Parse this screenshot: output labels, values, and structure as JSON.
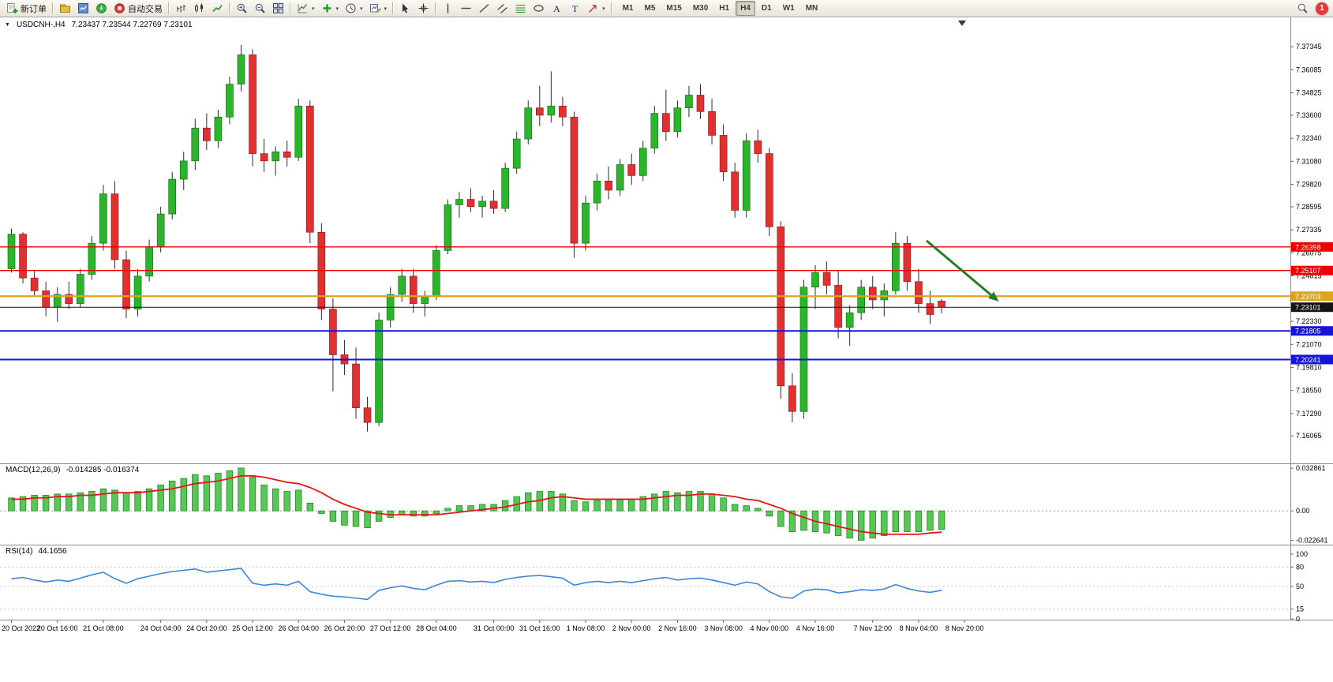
{
  "toolbar": {
    "new_order_label": "新订单",
    "auto_trading_label": "自动交易",
    "timeframes": [
      "M1",
      "M5",
      "M15",
      "M30",
      "H1",
      "H4",
      "D1",
      "W1",
      "MN"
    ],
    "active_timeframe": "H4",
    "notification_count": "1"
  },
  "symbol_row": {
    "symbol": "USDCNH-,H4",
    "ohlc": "7.23437 7.23544 7.22769 7.23101"
  },
  "macd_panel": {
    "label": "MACD(12,26,9)",
    "values": "-0.014285 -0.016374"
  },
  "rsi_panel": {
    "label": "RSI(14)",
    "value": "44.1656"
  },
  "colors": {
    "candle_up": "#2cb52c",
    "candle_down": "#e23030",
    "candle_up_stroke": "#0b640b",
    "candle_down_stroke": "#821212",
    "wick": "#2b2b2b",
    "macd_hist_fill": "#58c758",
    "macd_hist_stroke": "#1d8a1d",
    "macd_signal": "#e01818",
    "rsi_line": "#3d85d8",
    "arrow": "#237d23"
  },
  "chart_data": {
    "type": "candlestick",
    "title": "USDCNH-,H4",
    "ylim": [
      7.1465,
      7.3895
    ],
    "price_axis_ticks": [
      "7.37345",
      "7.36085",
      "7.34825",
      "7.33600",
      "7.32340",
      "7.31080",
      "7.29820",
      "7.28595",
      "7.27335",
      "7.26075",
      "7.24815",
      "7.23590",
      "7.22330",
      "7.21070",
      "7.19810",
      "7.18550",
      "7.17290",
      "7.16065"
    ],
    "candles": [
      [
        7.252,
        7.274,
        7.25,
        7.271
      ],
      [
        7.271,
        7.272,
        7.244,
        7.247
      ],
      [
        7.247,
        7.251,
        7.237,
        7.24
      ],
      [
        7.24,
        7.245,
        7.226,
        7.231
      ],
      [
        7.231,
        7.242,
        7.223,
        7.238
      ],
      [
        7.238,
        7.245,
        7.23,
        7.233
      ],
      [
        7.233,
        7.252,
        7.231,
        7.249
      ],
      [
        7.249,
        7.27,
        7.246,
        7.266
      ],
      [
        7.266,
        7.298,
        7.262,
        7.293
      ],
      [
        7.293,
        7.3,
        7.252,
        7.257
      ],
      [
        7.257,
        7.262,
        7.225,
        7.23
      ],
      [
        7.23,
        7.252,
        7.226,
        7.248
      ],
      [
        7.248,
        7.268,
        7.245,
        7.264
      ],
      [
        7.264,
        7.286,
        7.261,
        7.282
      ],
      [
        7.282,
        7.305,
        7.279,
        7.301
      ],
      [
        7.301,
        7.316,
        7.295,
        7.311
      ],
      [
        7.311,
        7.334,
        7.306,
        7.329
      ],
      [
        7.329,
        7.337,
        7.317,
        7.322
      ],
      [
        7.322,
        7.339,
        7.318,
        7.335
      ],
      [
        7.335,
        7.357,
        7.331,
        7.353
      ],
      [
        7.353,
        7.3745,
        7.349,
        7.369
      ],
      [
        7.369,
        7.372,
        7.308,
        7.315
      ],
      [
        7.315,
        7.323,
        7.305,
        7.311
      ],
      [
        7.311,
        7.319,
        7.303,
        7.316
      ],
      [
        7.316,
        7.322,
        7.308,
        7.313
      ],
      [
        7.313,
        7.345,
        7.311,
        7.341
      ],
      [
        7.341,
        7.344,
        7.266,
        7.272
      ],
      [
        7.272,
        7.277,
        7.224,
        7.23
      ],
      [
        7.23,
        7.236,
        7.185,
        7.205
      ],
      [
        7.205,
        7.213,
        7.194,
        7.2
      ],
      [
        7.2,
        7.209,
        7.17,
        7.176
      ],
      [
        7.176,
        7.182,
        7.163,
        7.168
      ],
      [
        7.168,
        7.228,
        7.166,
        7.224
      ],
      [
        7.224,
        7.242,
        7.22,
        7.238
      ],
      [
        7.238,
        7.252,
        7.234,
        7.248
      ],
      [
        7.248,
        7.252,
        7.228,
        7.233
      ],
      [
        7.233,
        7.24,
        7.226,
        7.237
      ],
      [
        7.237,
        7.265,
        7.235,
        7.262
      ],
      [
        7.262,
        7.29,
        7.26,
        7.287
      ],
      [
        7.287,
        7.294,
        7.28,
        7.29
      ],
      [
        7.29,
        7.296,
        7.283,
        7.286
      ],
      [
        7.286,
        7.292,
        7.28,
        7.289
      ],
      [
        7.289,
        7.295,
        7.282,
        7.285
      ],
      [
        7.285,
        7.31,
        7.283,
        7.307
      ],
      [
        7.307,
        7.327,
        7.304,
        7.323
      ],
      [
        7.323,
        7.344,
        7.32,
        7.34
      ],
      [
        7.34,
        7.352,
        7.33,
        7.336
      ],
      [
        7.336,
        7.36,
        7.332,
        7.341
      ],
      [
        7.341,
        7.346,
        7.33,
        7.335
      ],
      [
        7.335,
        7.338,
        7.258,
        7.266
      ],
      [
        7.266,
        7.292,
        7.262,
        7.288
      ],
      [
        7.288,
        7.304,
        7.284,
        7.3
      ],
      [
        7.3,
        7.308,
        7.29,
        7.295
      ],
      [
        7.295,
        7.312,
        7.292,
        7.309
      ],
      [
        7.309,
        7.315,
        7.298,
        7.303
      ],
      [
        7.303,
        7.322,
        7.3,
        7.318
      ],
      [
        7.318,
        7.341,
        7.315,
        7.337
      ],
      [
        7.337,
        7.35,
        7.322,
        7.327
      ],
      [
        7.327,
        7.344,
        7.324,
        7.34
      ],
      [
        7.34,
        7.352,
        7.335,
        7.347
      ],
      [
        7.347,
        7.353,
        7.334,
        7.338
      ],
      [
        7.338,
        7.345,
        7.32,
        7.325
      ],
      [
        7.325,
        7.331,
        7.3,
        7.305
      ],
      [
        7.305,
        7.31,
        7.28,
        7.284
      ],
      [
        7.284,
        7.326,
        7.28,
        7.322
      ],
      [
        7.322,
        7.328,
        7.31,
        7.315
      ],
      [
        7.315,
        7.318,
        7.27,
        7.275
      ],
      [
        7.275,
        7.278,
        7.181,
        7.188
      ],
      [
        7.188,
        7.195,
        7.168,
        7.174
      ],
      [
        7.174,
        7.246,
        7.17,
        7.242
      ],
      [
        7.242,
        7.254,
        7.23,
        7.25
      ],
      [
        7.25,
        7.256,
        7.238,
        7.243
      ],
      [
        7.243,
        7.251,
        7.214,
        7.22
      ],
      [
        7.22,
        7.232,
        7.21,
        7.228
      ],
      [
        7.228,
        7.246,
        7.224,
        7.242
      ],
      [
        7.242,
        7.248,
        7.23,
        7.235
      ],
      [
        7.235,
        7.244,
        7.226,
        7.24
      ],
      [
        7.24,
        7.272,
        7.238,
        7.266
      ],
      [
        7.266,
        7.27,
        7.24,
        7.245
      ],
      [
        7.245,
        7.252,
        7.228,
        7.233
      ],
      [
        7.233,
        7.24,
        7.222,
        7.227
      ],
      [
        7.23437,
        7.23544,
        7.22769,
        7.23101
      ]
    ],
    "time_labels": [
      {
        "bar": 0,
        "text": "20 Oct 2022"
      },
      {
        "bar": 4,
        "text": "20 Oct 16:00"
      },
      {
        "bar": 8,
        "text": "21 Oct 08:00"
      },
      {
        "bar": 13,
        "text": "24 Oct 04:00"
      },
      {
        "bar": 17,
        "text": "24 Oct 20:00"
      },
      {
        "bar": 21,
        "text": "25 Oct 12:00"
      },
      {
        "bar": 25,
        "text": "26 Oct 04:00"
      },
      {
        "bar": 29,
        "text": "26 Oct 20:00"
      },
      {
        "bar": 33,
        "text": "27 Oct 12:00"
      },
      {
        "bar": 37,
        "text": "28 Oct 04:00"
      },
      {
        "bar": 42,
        "text": "31 Oct 00:00"
      },
      {
        "bar": 46,
        "text": "31 Oct 16:00"
      },
      {
        "bar": 50,
        "text": "1 Nov 08:00"
      },
      {
        "bar": 54,
        "text": "2 Nov 00:00"
      },
      {
        "bar": 58,
        "text": "2 Nov 16:00"
      },
      {
        "bar": 62,
        "text": "3 Nov 08:00"
      },
      {
        "bar": 66,
        "text": "4 Nov 00:00"
      },
      {
        "bar": 70,
        "text": "4 Nov 16:00"
      },
      {
        "bar": 75,
        "text": "7 Nov 12:00"
      },
      {
        "bar": 79,
        "text": "8 Nov 04:00"
      },
      {
        "bar": 83,
        "text": "8 Nov 20:00"
      }
    ],
    "hlines": [
      {
        "price": 7.26398,
        "label": "7.26398",
        "color": "#f00000",
        "width": 1.4
      },
      {
        "price": 7.25107,
        "label": "7.25107",
        "color": "#f00000",
        "width": 1.4
      },
      {
        "price": 7.23703,
        "label": "7.23703",
        "color": "#dfa41c",
        "width": 2.2
      },
      {
        "price": 7.23101,
        "label": "7.23101",
        "color": "#141414",
        "width": 1
      },
      {
        "price": 7.21805,
        "label": "7.21805",
        "color": "#1515d8",
        "width": 2
      },
      {
        "price": 7.20241,
        "label": "7.20241",
        "color": "#1515d8",
        "width": 2
      }
    ],
    "arrow": {
      "from_bar": 80,
      "from_price": 7.2674,
      "to_bar": 86.3,
      "to_price": 7.2341
    },
    "macd": {
      "ylim": [
        -0.026,
        0.036
      ],
      "hist": [
        0.01,
        0.011,
        0.012,
        0.012,
        0.013,
        0.013,
        0.014,
        0.015,
        0.017,
        0.016,
        0.014,
        0.015,
        0.017,
        0.02,
        0.023,
        0.025,
        0.028,
        0.027,
        0.029,
        0.031,
        0.033,
        0.026,
        0.02,
        0.017,
        0.015,
        0.016,
        0.006,
        -0.002,
        -0.008,
        -0.011,
        -0.012,
        -0.013,
        -0.008,
        -0.005,
        -0.003,
        -0.004,
        -0.004,
        -0.002,
        0.002,
        0.004,
        0.004,
        0.005,
        0.005,
        0.008,
        0.011,
        0.014,
        0.015,
        0.015,
        0.013,
        0.008,
        0.007,
        0.008,
        0.008,
        0.009,
        0.009,
        0.011,
        0.013,
        0.015,
        0.014,
        0.015,
        0.015,
        0.013,
        0.01,
        0.005,
        0.004,
        0.002,
        -0.004,
        -0.012,
        -0.016,
        -0.015,
        -0.016,
        -0.017,
        -0.019,
        -0.021,
        -0.0226,
        -0.021,
        -0.019,
        -0.016,
        -0.016,
        -0.016,
        -0.015,
        -0.0143
      ],
      "signal": [
        0.009,
        0.009,
        0.01,
        0.01,
        0.011,
        0.011,
        0.012,
        0.012,
        0.013,
        0.014,
        0.014,
        0.014,
        0.015,
        0.016,
        0.017,
        0.019,
        0.021,
        0.022,
        0.023,
        0.025,
        0.027,
        0.027,
        0.026,
        0.024,
        0.022,
        0.021,
        0.018,
        0.014,
        0.009,
        0.005,
        0.002,
        -0.001,
        -0.002,
        -0.003,
        -0.003,
        -0.003,
        -0.003,
        -0.003,
        -0.002,
        -0.001,
        0.0,
        0.001,
        0.002,
        0.003,
        0.005,
        0.007,
        0.008,
        0.01,
        0.011,
        0.01,
        0.009,
        0.009,
        0.009,
        0.009,
        0.009,
        0.009,
        0.01,
        0.011,
        0.012,
        0.012,
        0.013,
        0.013,
        0.012,
        0.011,
        0.009,
        0.008,
        0.005,
        0.002,
        -0.002,
        -0.005,
        -0.008,
        -0.01,
        -0.012,
        -0.014,
        -0.016,
        -0.017,
        -0.018,
        -0.018,
        -0.018,
        -0.018,
        -0.017,
        -0.0164
      ],
      "axis_ticks": [
        {
          "v": 0.032861,
          "text": "0.032861"
        },
        {
          "v": 0.0,
          "text": "0.00"
        },
        {
          "v": -0.022641,
          "text": "-0.022641"
        }
      ]
    },
    "rsi": {
      "values": [
        62,
        64,
        60,
        57,
        60,
        58,
        63,
        68,
        72,
        62,
        55,
        62,
        66,
        70,
        73,
        75,
        77,
        72,
        74,
        76,
        78,
        55,
        52,
        54,
        52,
        58,
        42,
        38,
        35,
        34,
        32,
        30,
        44,
        48,
        51,
        47,
        45,
        52,
        58,
        59,
        57,
        58,
        56,
        61,
        64,
        66,
        67,
        65,
        63,
        52,
        56,
        58,
        56,
        58,
        56,
        59,
        62,
        64,
        60,
        62,
        63,
        60,
        56,
        52,
        57,
        54,
        42,
        34,
        32,
        43,
        46,
        45,
        40,
        42,
        45,
        44,
        46,
        53,
        47,
        43,
        41,
        44.17
      ],
      "levels": [
        80,
        50,
        15
      ],
      "axis_ticks": [
        {
          "v": 100,
          "text": "100"
        },
        {
          "v": 80,
          "text": "80"
        },
        {
          "v": 50,
          "text": "50"
        },
        {
          "v": 15,
          "text": "15"
        },
        {
          "v": 0,
          "text": "0"
        }
      ]
    }
  }
}
